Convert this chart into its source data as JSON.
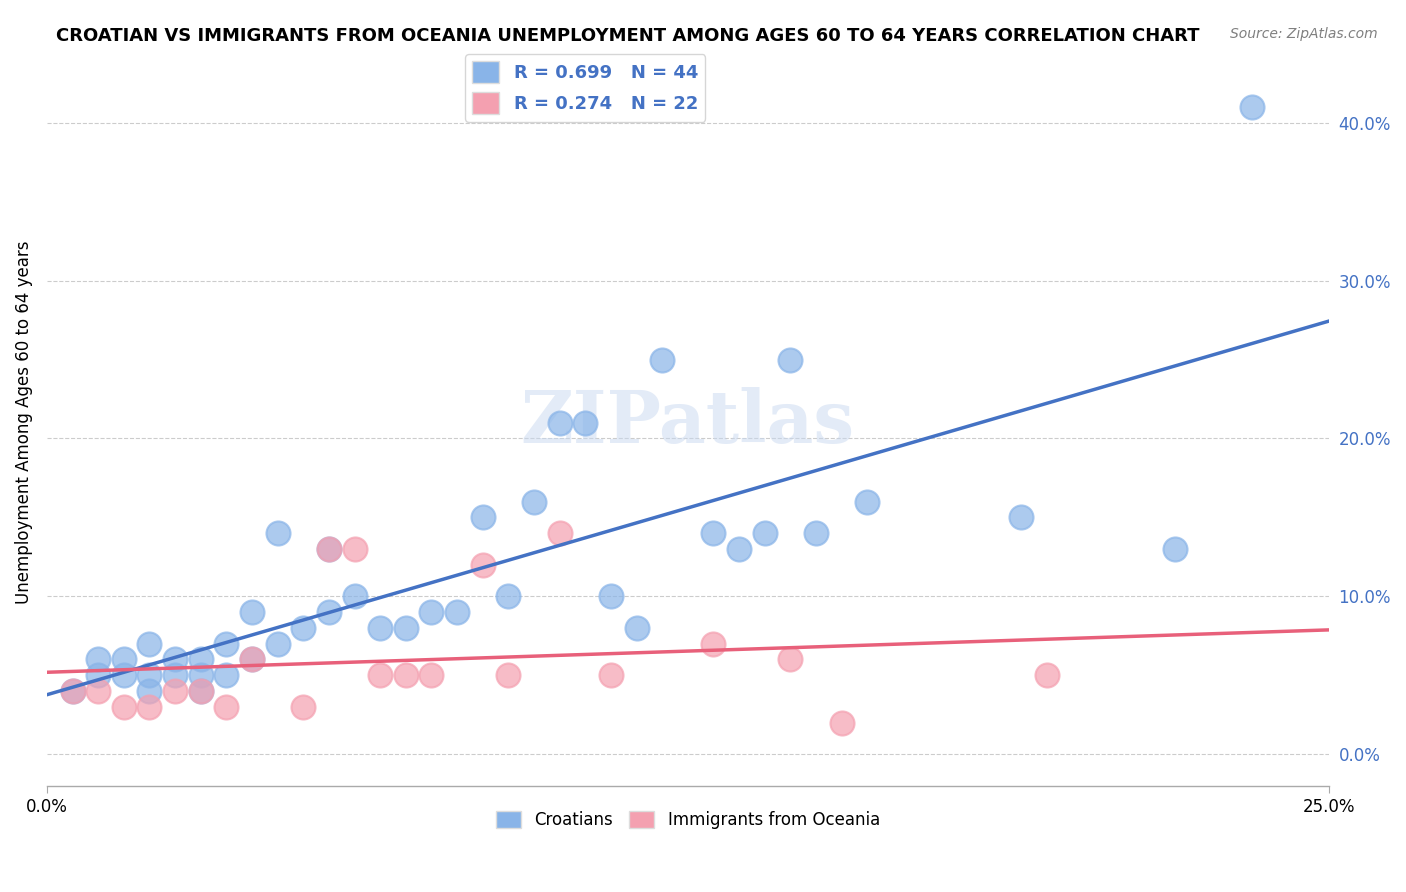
{
  "title": "CROATIAN VS IMMIGRANTS FROM OCEANIA UNEMPLOYMENT AMONG AGES 60 TO 64 YEARS CORRELATION CHART",
  "source": "Source: ZipAtlas.com",
  "ylabel": "Unemployment Among Ages 60 to 64 years",
  "xlabel": "",
  "xlim": [
    0.0,
    0.25
  ],
  "ylim": [
    -0.02,
    0.44
  ],
  "ytick_labels": [
    "0.0%",
    "10.0%",
    "20.0%",
    "30.0%",
    "40.0%"
  ],
  "ytick_values": [
    0.0,
    0.1,
    0.2,
    0.3,
    0.4
  ],
  "xtick_labels": [
    "0.0%",
    "25.0%"
  ],
  "xtick_values": [
    0.0,
    0.25
  ],
  "croatians_color": "#89b4e8",
  "oceania_color": "#f4a0b0",
  "line_blue": "#4472c4",
  "line_pink": "#e8607a",
  "watermark": "ZIPatlas",
  "legend_r_croatians": "R = 0.699",
  "legend_n_croatians": "N = 44",
  "legend_r_oceania": "R = 0.274",
  "legend_n_oceania": "N = 22",
  "croatians_x": [
    0.005,
    0.01,
    0.01,
    0.015,
    0.015,
    0.02,
    0.02,
    0.02,
    0.025,
    0.025,
    0.03,
    0.03,
    0.03,
    0.035,
    0.035,
    0.04,
    0.04,
    0.045,
    0.045,
    0.05,
    0.055,
    0.055,
    0.06,
    0.065,
    0.07,
    0.075,
    0.08,
    0.085,
    0.09,
    0.095,
    0.1,
    0.105,
    0.11,
    0.115,
    0.12,
    0.13,
    0.135,
    0.14,
    0.145,
    0.15,
    0.16,
    0.19,
    0.22,
    0.235
  ],
  "croatians_y": [
    0.04,
    0.05,
    0.06,
    0.05,
    0.06,
    0.04,
    0.05,
    0.07,
    0.05,
    0.06,
    0.04,
    0.05,
    0.06,
    0.05,
    0.07,
    0.06,
    0.09,
    0.07,
    0.14,
    0.08,
    0.09,
    0.13,
    0.1,
    0.08,
    0.08,
    0.09,
    0.09,
    0.15,
    0.1,
    0.16,
    0.21,
    0.21,
    0.1,
    0.08,
    0.25,
    0.14,
    0.13,
    0.14,
    0.25,
    0.14,
    0.16,
    0.15,
    0.13,
    0.41
  ],
  "oceania_x": [
    0.005,
    0.01,
    0.015,
    0.02,
    0.025,
    0.03,
    0.035,
    0.04,
    0.05,
    0.055,
    0.06,
    0.065,
    0.07,
    0.075,
    0.085,
    0.09,
    0.1,
    0.11,
    0.13,
    0.145,
    0.155,
    0.195
  ],
  "oceania_y": [
    0.04,
    0.04,
    0.03,
    0.03,
    0.04,
    0.04,
    0.03,
    0.06,
    0.03,
    0.13,
    0.13,
    0.05,
    0.05,
    0.05,
    0.12,
    0.05,
    0.14,
    0.05,
    0.07,
    0.06,
    0.02,
    0.05
  ]
}
